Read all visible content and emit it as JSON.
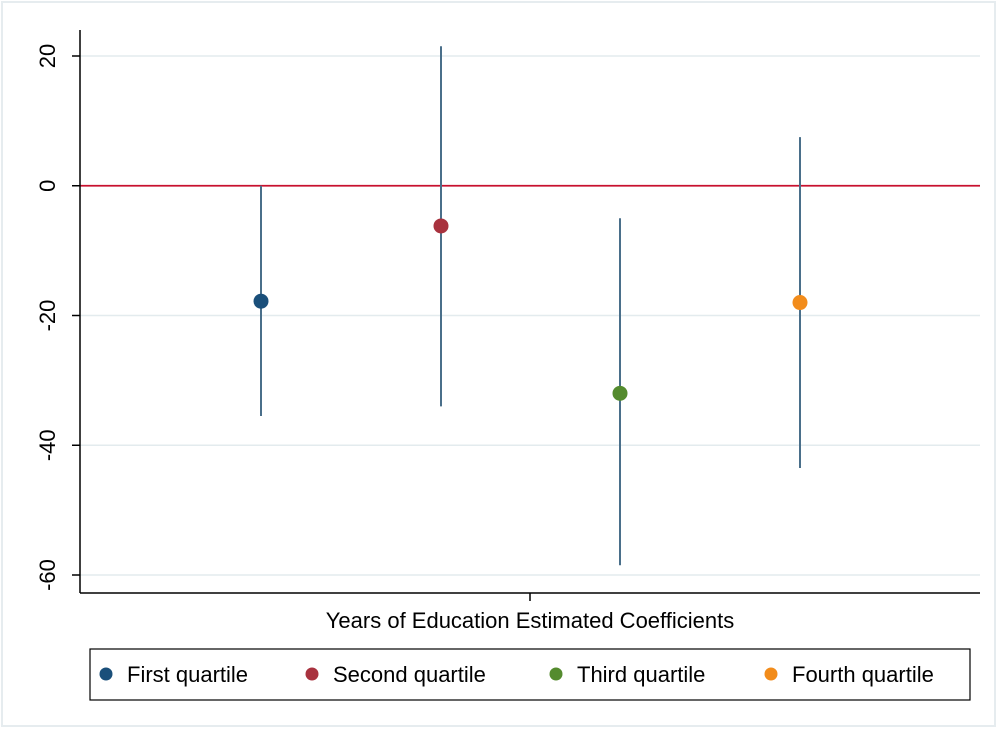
{
  "chart_data": {
    "type": "scatter",
    "title": "",
    "xlabel": "Years of Education Estimated Coefficients",
    "ylabel": "",
    "ylim": [
      -62,
      24
    ],
    "yticks": [
      20,
      0,
      -20,
      -40,
      -60
    ],
    "yticklabels": [
      "20",
      "0",
      "-20",
      "-40",
      "-60"
    ],
    "grid": true,
    "reference_line": {
      "y": 0,
      "color": "#c8102e"
    },
    "legend_position": "bottom",
    "series": [
      {
        "name": "First quartile",
        "color": "#1a4f7a",
        "estimate": -17.8,
        "ci": [
          -35.5,
          0.0
        ]
      },
      {
        "name": "Second quartile",
        "color": "#a8323e",
        "estimate": -6.2,
        "ci": [
          -34.0,
          21.5
        ]
      },
      {
        "name": "Third quartile",
        "color": "#548b2e",
        "estimate": -32.0,
        "ci": [
          -58.5,
          -5.0
        ]
      },
      {
        "name": "Fourth quartile",
        "color": "#f28c1b",
        "estimate": -18.0,
        "ci": [
          -43.5,
          7.5
        ]
      }
    ],
    "ci_color": "#4a6f8a"
  }
}
